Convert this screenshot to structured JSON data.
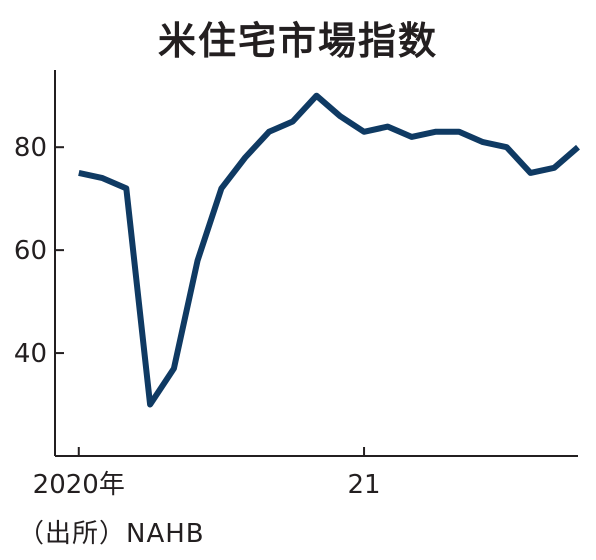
{
  "title": "米住宅市場指数",
  "source": "（出所）NAHB",
  "colors": {
    "line": "#0f3a63",
    "axis": "#231f20",
    "background": "#ffffff"
  },
  "chart_data": {
    "type": "line",
    "title": "米住宅市場指数",
    "xlabel": "",
    "ylabel": "",
    "x_ticks": [
      "2020年",
      "21"
    ],
    "y_ticks": [
      40,
      60,
      80
    ],
    "ylim": [
      20,
      95
    ],
    "xlim": [
      "2019-12",
      "2021-10"
    ],
    "grid": false,
    "series": [
      {
        "x": [
          "2020-01",
          "2020-02",
          "2020-03",
          "2020-04",
          "2020-05",
          "2020-06",
          "2020-07",
          "2020-08",
          "2020-09",
          "2020-10",
          "2020-11",
          "2020-12",
          "2021-01",
          "2021-02",
          "2021-03",
          "2021-04",
          "2021-05",
          "2021-06",
          "2021-07",
          "2021-08",
          "2021-09",
          "2021-10"
        ],
        "values": [
          75,
          74,
          72,
          30,
          37,
          58,
          72,
          78,
          83,
          85,
          90,
          86,
          83,
          84,
          82,
          83,
          83,
          81,
          80,
          75,
          76,
          80
        ]
      }
    ]
  }
}
